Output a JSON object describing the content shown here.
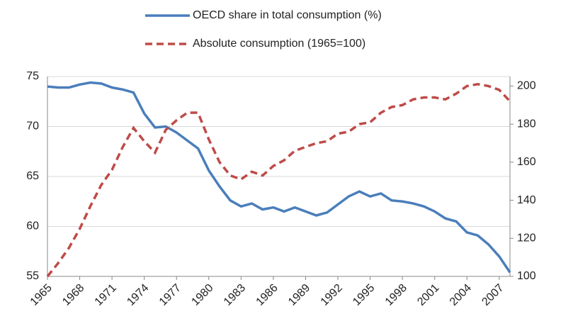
{
  "chart_data": {
    "type": "line",
    "x": [
      1965,
      1966,
      1967,
      1968,
      1969,
      1970,
      1971,
      1972,
      1973,
      1974,
      1975,
      1976,
      1977,
      1978,
      1979,
      1980,
      1981,
      1982,
      1983,
      1984,
      1985,
      1986,
      1987,
      1988,
      1989,
      1990,
      1991,
      1992,
      1993,
      1994,
      1995,
      1996,
      1997,
      1998,
      1999,
      2000,
      2001,
      2002,
      2003,
      2004,
      2005,
      2006,
      2007,
      2008
    ],
    "series": [
      {
        "name": "OECD share in total consumption (%)",
        "color": "#4a7ebb",
        "dash": false,
        "values": [
          74.0,
          73.9,
          73.9,
          74.2,
          74.4,
          74.3,
          73.9,
          73.7,
          73.4,
          71.3,
          69.9,
          70.0,
          69.4,
          68.6,
          67.8,
          65.6,
          64.0,
          62.6,
          62.0,
          62.3,
          61.7,
          61.9,
          61.5,
          61.9,
          61.5,
          61.1,
          61.4,
          62.2,
          63.0,
          63.5,
          63.0,
          63.3,
          62.6,
          62.5,
          62.3,
          62.0,
          61.5,
          60.8,
          60.5,
          59.4,
          59.1,
          58.2,
          57.0,
          55.4
        ]
      },
      {
        "name": "Absolute consumption (1965=100)",
        "color": "#be4b48",
        "dash": true,
        "axis": "y2",
        "values": [
          100,
          107,
          115,
          125,
          137,
          148,
          156,
          168,
          178,
          171,
          165,
          177,
          182,
          186,
          186,
          172,
          160,
          153,
          151,
          155,
          153,
          158,
          161,
          166,
          168,
          170,
          171,
          175,
          176,
          180,
          181,
          186,
          189,
          190,
          193,
          194,
          194,
          193,
          196,
          200,
          201,
          200,
          198,
          192
        ]
      }
    ],
    "xlim": [
      1965,
      2008
    ],
    "xticks": [
      1965,
      1968,
      1971,
      1974,
      1977,
      1980,
      1983,
      1986,
      1989,
      1992,
      1995,
      1998,
      2001,
      2004,
      2007
    ],
    "ylim": [
      55,
      75
    ],
    "yticks": [
      55,
      60,
      65,
      70,
      75
    ],
    "y2lim": [
      100,
      205
    ],
    "y2ticks": [
      100,
      120,
      140,
      160,
      180,
      200
    ],
    "grid": true,
    "legend": "top"
  }
}
